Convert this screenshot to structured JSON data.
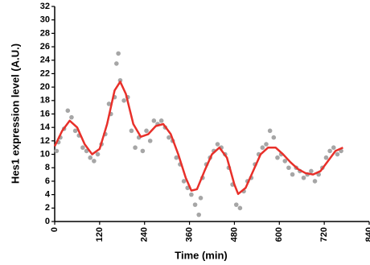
{
  "chart_data": {
    "type": "combo",
    "x_label": "Time (min)",
    "y_label": "Hes1 expression level (A.U.)",
    "xlim": [
      0,
      840
    ],
    "xticks": [
      0,
      120,
      240,
      360,
      480,
      600,
      720,
      840
    ],
    "ylim": [
      0,
      32
    ],
    "yticks": [
      0,
      2,
      4,
      6,
      8,
      10,
      12,
      14,
      16,
      18,
      20,
      22,
      24,
      26,
      28,
      30,
      32
    ],
    "series": [
      {
        "type": "scatter",
        "color": "#a6a6a6",
        "x": [
          5,
          10,
          15,
          25,
          35,
          45,
          55,
          65,
          75,
          85,
          95,
          105,
          115,
          125,
          135,
          145,
          150,
          160,
          165,
          170,
          175,
          185,
          195,
          205,
          215,
          225,
          235,
          245,
          255,
          265,
          275,
          285,
          295,
          305,
          315,
          325,
          335,
          345,
          355,
          365,
          375,
          385,
          390,
          395,
          405,
          415,
          425,
          435,
          445,
          455,
          465,
          475,
          485,
          495,
          505,
          515,
          525,
          535,
          545,
          555,
          565,
          575,
          585,
          595,
          605,
          615,
          625,
          635,
          645,
          655,
          665,
          675,
          685,
          695,
          705,
          715,
          725,
          735,
          745,
          755,
          765
        ],
        "values": [
          10.5,
          11.8,
          12.5,
          13.8,
          16.5,
          15.5,
          13.5,
          12.8,
          11,
          10.5,
          9.5,
          9,
          10,
          11.5,
          13,
          17.5,
          16,
          18.5,
          23.5,
          25,
          21,
          18,
          18.5,
          13.5,
          11,
          12.5,
          10.5,
          13.5,
          12,
          15,
          14.5,
          15,
          14,
          12.5,
          12,
          9.5,
          8.5,
          6,
          5,
          4,
          2.5,
          1,
          3.5,
          6.5,
          8.5,
          9.5,
          10.5,
          11.5,
          11,
          10,
          8,
          5.5,
          2.5,
          2,
          4.5,
          6,
          6.5,
          8.5,
          10,
          11,
          11.5,
          13.5,
          12.5,
          9.5,
          10,
          9,
          8,
          7,
          8,
          7.5,
          6.5,
          7,
          7.5,
          6,
          7,
          8,
          9.5,
          10.5,
          11,
          10,
          10.5
        ]
      },
      {
        "type": "line",
        "color": "#e8302a",
        "x": [
          0,
          20,
          40,
          60,
          80,
          100,
          120,
          140,
          160,
          175,
          190,
          210,
          230,
          250,
          270,
          290,
          310,
          330,
          350,
          365,
          380,
          400,
          420,
          440,
          460,
          480,
          490,
          510,
          530,
          550,
          570,
          590,
          610,
          630,
          650,
          670,
          690,
          710,
          730,
          750,
          770
        ],
        "values": [
          11.2,
          13.5,
          15,
          14,
          11.5,
          10,
          10.8,
          14.5,
          19.5,
          20.8,
          19,
          14.5,
          12.6,
          13,
          14.2,
          14.5,
          13,
          10,
          6.5,
          4.6,
          4.8,
          7.5,
          10,
          11,
          9.5,
          5.5,
          4.1,
          5,
          7.5,
          10,
          11,
          11,
          10,
          8.8,
          7.8,
          7.2,
          7,
          7.5,
          9,
          10.5,
          11
        ]
      }
    ]
  }
}
